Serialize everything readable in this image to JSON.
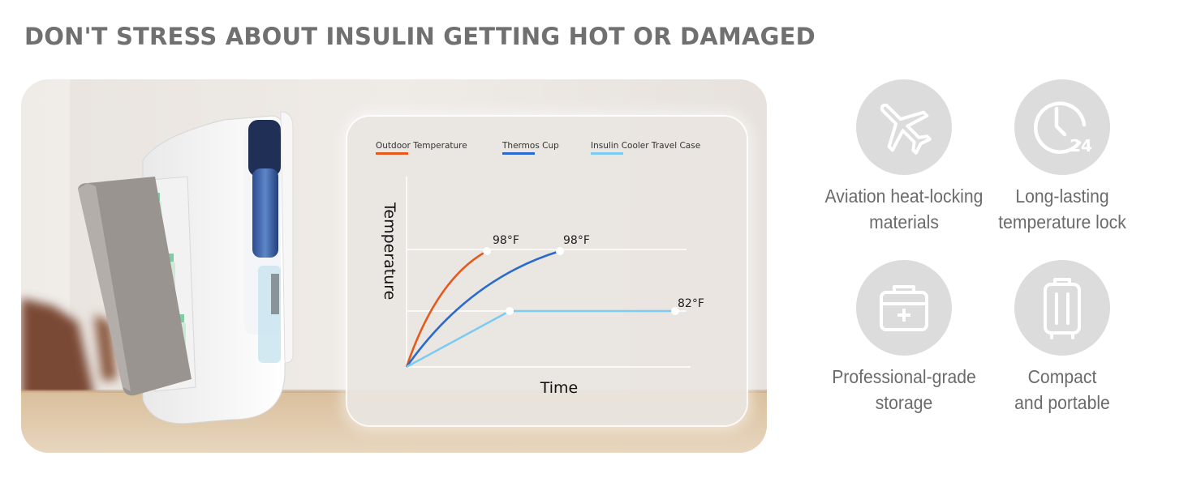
{
  "headline": "DON'T STRESS ABOUT INSULIN GETTING HOT OR DAMAGED",
  "colors": {
    "outdoor": "#e55a1c",
    "thermos": "#2a6ad0",
    "cooler": "#7ccbf3",
    "icon_circle": "#dcdcdc",
    "text_gray": "#6b6b6b"
  },
  "chart_data": {
    "type": "line",
    "xlabel": "Time",
    "ylabel": "Temperature",
    "grid": true,
    "legend_placement": "top",
    "series": [
      {
        "name": "Outdoor Temperature",
        "color": "#e55a1c",
        "end_label": "98°F"
      },
      {
        "name": "Thermos Cup",
        "color": "#2a6ad0",
        "end_label": "98°F"
      },
      {
        "name": "Insulin Cooler Travel Case",
        "color": "#7ccbf3",
        "end_label": "82°F"
      }
    ]
  },
  "features": [
    {
      "icon": "airplane-icon",
      "lines": [
        "Aviation heat-locking",
        "materials"
      ]
    },
    {
      "icon": "clock-24-icon",
      "lines": [
        "Long-lasting",
        "temperature lock"
      ],
      "icon_text": "24"
    },
    {
      "icon": "storage-box-icon",
      "lines": [
        "Professional-grade",
        "storage"
      ]
    },
    {
      "icon": "luggage-icon",
      "lines": [
        "Compact",
        "and portable"
      ]
    }
  ]
}
